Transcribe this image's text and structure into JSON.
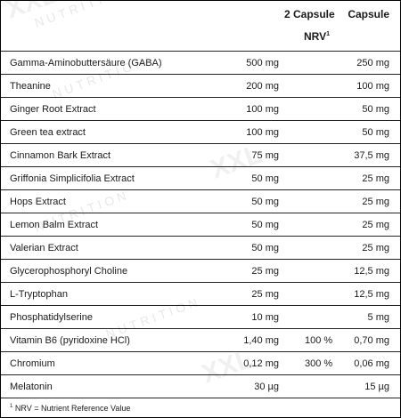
{
  "header": {
    "col_two_capsule": "2 Capsule",
    "col_capsule": "Capsule",
    "nrv_label": "NRV",
    "nrv_sup": "1"
  },
  "rows": [
    {
      "name": "Gamma-Aminobuttersäure (GABA)",
      "amount": "500 mg",
      "nrv": "",
      "per_capsule": "250 mg"
    },
    {
      "name": "Theanine",
      "amount": "200 mg",
      "nrv": "",
      "per_capsule": "100 mg"
    },
    {
      "name": "Ginger Root Extract",
      "amount": "100 mg",
      "nrv": "",
      "per_capsule": "50 mg"
    },
    {
      "name": "Green tea extract",
      "amount": "100 mg",
      "nrv": "",
      "per_capsule": "50 mg"
    },
    {
      "name": "Cinnamon Bark Extract",
      "amount": "75 mg",
      "nrv": "",
      "per_capsule": "37,5 mg"
    },
    {
      "name": "Griffonia Simplicifolia Extract",
      "amount": "50 mg",
      "nrv": "",
      "per_capsule": "25 mg"
    },
    {
      "name": "Hops Extract",
      "amount": "50 mg",
      "nrv": "",
      "per_capsule": "25 mg"
    },
    {
      "name": "Lemon Balm Extract",
      "amount": "50 mg",
      "nrv": "",
      "per_capsule": "25 mg"
    },
    {
      "name": "Valerian Extract",
      "amount": "50 mg",
      "nrv": "",
      "per_capsule": "25 mg"
    },
    {
      "name": "Glycerophosphoryl Choline",
      "amount": "25 mg",
      "nrv": "",
      "per_capsule": "12,5 mg"
    },
    {
      "name": "L-Tryptophan",
      "amount": "25 mg",
      "nrv": "",
      "per_capsule": "12,5 mg"
    },
    {
      "name": "Phosphatidylserine",
      "amount": "10 mg",
      "nrv": "",
      "per_capsule": "5 mg"
    },
    {
      "name": "Vitamin B6 (pyridoxine HCl)",
      "amount": "1,40 mg",
      "nrv": "100 %",
      "per_capsule": "0,70 mg"
    },
    {
      "name": "Chromium",
      "amount": "0,12 mg",
      "nrv": "300 %",
      "per_capsule": "0,06 mg"
    },
    {
      "name": "Melatonin",
      "amount": "30 µg",
      "nrv": "",
      "per_capsule": "15 µg"
    }
  ],
  "footnote": {
    "sup": "1",
    "text": "NRV = Nutrient Reference Value"
  },
  "watermark": {
    "brand": "XXL",
    "word": "NUTRITION",
    "color": "#d8d8d8"
  }
}
